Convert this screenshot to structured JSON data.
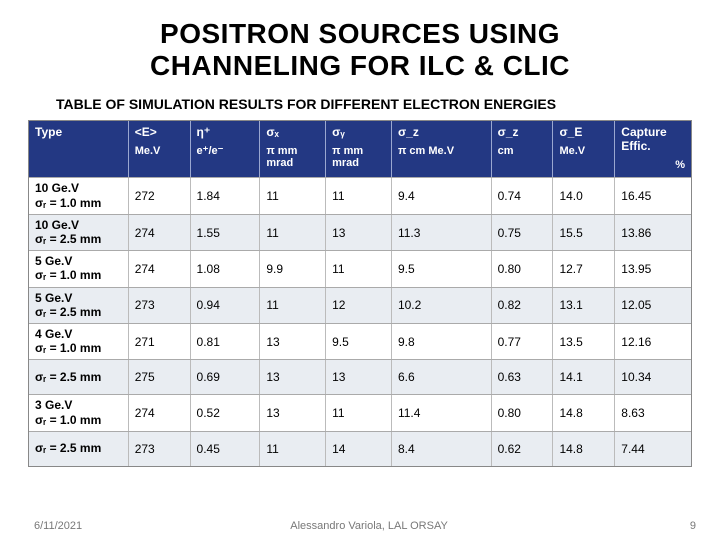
{
  "colors": {
    "header_bg": "#233883",
    "header_fg": "#ffffff",
    "row_even_bg": "#e9edf2",
    "row_odd_bg": "#ffffff",
    "border": "#aaaaaa",
    "footer_fg": "#787878"
  },
  "title": {
    "line1": "POSITRON SOURCES USING",
    "line2": "CHANNELING FOR ILC & CLIC",
    "fontsize": 28
  },
  "subtitle": "TABLE OF SIMULATION RESULTS FOR DIFFERENT ELECTRON ENERGIES",
  "table": {
    "columns": [
      {
        "top": "Type",
        "bottom": ""
      },
      {
        "top": "<E>",
        "bottom": "Me.V"
      },
      {
        "top": "η⁺",
        "bottom": "e⁺/e⁻"
      },
      {
        "top": "σₓ",
        "bottom": "π mm mrad"
      },
      {
        "top": "σᵧ",
        "bottom": "π mm mrad"
      },
      {
        "top": "σ_z",
        "bottom": "π cm Me.V"
      },
      {
        "top": "σ_z",
        "bottom": "cm"
      },
      {
        "top": "σ_E",
        "bottom": "Me.V"
      },
      {
        "top": "Capture Effic.",
        "bottom": "%"
      }
    ],
    "rows": [
      {
        "type_l1": "10 Ge.V",
        "type_l2": "σᵣ = 1.0 mm",
        "vals": [
          "272",
          "1.84",
          "11",
          "11",
          "9.4",
          "0.74",
          "14.0",
          "16.45"
        ]
      },
      {
        "type_l1": "10 Ge.V",
        "type_l2": "σᵣ = 2.5 mm",
        "vals": [
          "274",
          "1.55",
          "11",
          "13",
          "11.3",
          "0.75",
          "15.5",
          "13.86"
        ]
      },
      {
        "type_l1": "5 Ge.V",
        "type_l2": "σᵣ = 1.0 mm",
        "vals": [
          "274",
          "1.08",
          "9.9",
          "11",
          "9.5",
          "0.80",
          "12.7",
          "13.95"
        ]
      },
      {
        "type_l1": "5 Ge.V",
        "type_l2": "σᵣ = 2.5 mm",
        "vals": [
          "273",
          "0.94",
          "11",
          "12",
          "10.2",
          "0.82",
          "13.1",
          "12.05"
        ]
      },
      {
        "type_l1": "4 Ge.V",
        "type_l2": "σᵣ = 1.0 mm",
        "vals": [
          "271",
          "0.81",
          "13",
          "9.5",
          "9.8",
          "0.77",
          "13.5",
          "12.16"
        ]
      },
      {
        "type_l1": "",
        "type_l2": "σᵣ = 2.5 mm",
        "vals": [
          "275",
          "0.69",
          "13",
          "13",
          "6.6",
          "0.63",
          "14.1",
          "10.34"
        ]
      },
      {
        "type_l1": "3 Ge.V",
        "type_l2": "σᵣ = 1.0 mm",
        "vals": [
          "274",
          "0.52",
          "13",
          "11",
          "11.4",
          "0.80",
          "14.8",
          "8.63"
        ]
      },
      {
        "type_l1": "",
        "type_l2": "σᵣ = 2.5 mm",
        "vals": [
          "273",
          "0.45",
          "11",
          "14",
          "8.4",
          "0.62",
          "14.8",
          "7.44"
        ]
      }
    ]
  },
  "footer": {
    "date": "6/11/2021",
    "author": "Alessandro Variola, LAL ORSAY",
    "page": "9"
  }
}
